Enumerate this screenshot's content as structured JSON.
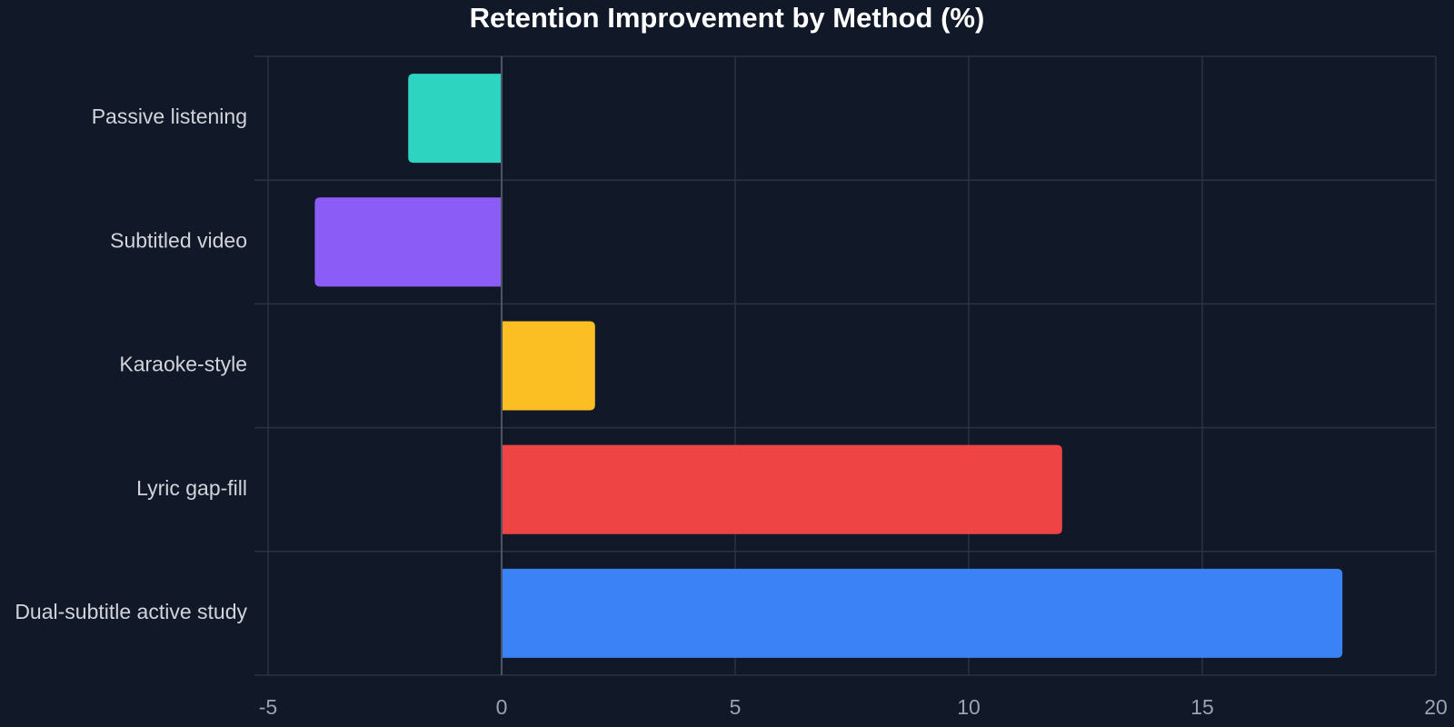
{
  "chart_data": {
    "type": "bar",
    "orientation": "horizontal",
    "title": "Retention Improvement by Method (%)",
    "xlabel": "",
    "ylabel": "",
    "categories": [
      "Passive listening",
      "Subtitled video",
      "Karaoke-style",
      "Lyric gap-fill",
      "Dual-subtitle active study"
    ],
    "values": [
      -2,
      -4,
      2,
      12,
      18
    ],
    "colors": [
      "#2dd4bf",
      "#8b5cf6",
      "#fbbf24",
      "#ef4444",
      "#3b82f6"
    ],
    "xlim": [
      -5,
      20
    ],
    "xticks": [
      -5,
      0,
      5,
      10,
      15,
      20
    ],
    "xtick_labels": [
      "-5",
      "0",
      "5",
      "10",
      "15",
      "20"
    ],
    "grid": true,
    "legend": "none"
  },
  "theme": {
    "background": "#111827",
    "grid_color": "#2a3342",
    "zero_line_color": "#4b5563",
    "tick_color": "#9ca3af",
    "category_color": "#d1d5db",
    "title_color": "#ffffff"
  }
}
